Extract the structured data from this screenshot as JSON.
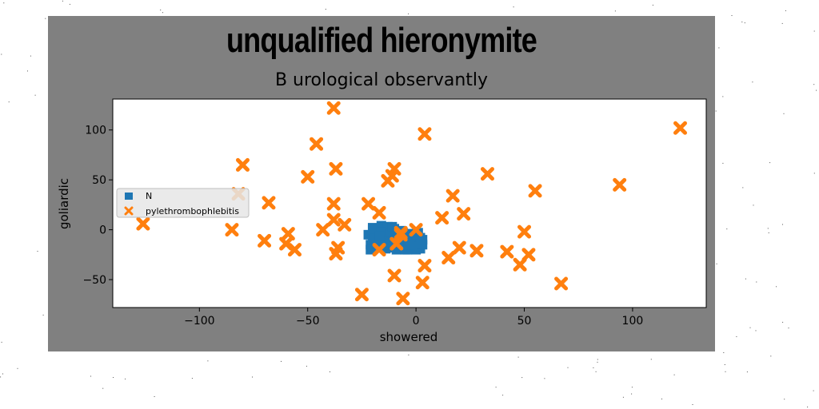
{
  "chart_data": {
    "type": "scatter",
    "title": "unqualified hieronymite",
    "subtitle": "B urological observantly",
    "xlabel": "showered",
    "ylabel": "goliardic",
    "xlim": [
      -140,
      134
    ],
    "ylim": [
      -78,
      131
    ],
    "xticks": [
      -100,
      -50,
      0,
      50,
      100
    ],
    "yticks": [
      -50,
      0,
      50,
      100
    ],
    "legend_position": "center-left",
    "background_color": "#808080",
    "plot_background": "#ffffff",
    "series": [
      {
        "name": "N",
        "marker": "square",
        "color": "#1f77b4",
        "x": [
          -22,
          -21,
          -20,
          -20,
          -19,
          -19,
          -18,
          -17,
          -17,
          -16,
          -16,
          -15,
          -15,
          -14,
          -14,
          -13,
          -13,
          -12,
          -12,
          -11,
          -11,
          -10,
          -10,
          -9,
          -9,
          -8,
          -8,
          -7,
          -7,
          -6,
          -6,
          -5,
          -5,
          -4,
          -4,
          -3,
          -3,
          -2,
          -2,
          -1,
          -1,
          0,
          0,
          1,
          1,
          2,
          2,
          3,
          3,
          -21,
          -18,
          -15,
          -12,
          -9,
          -6,
          -3,
          0,
          -20,
          -16,
          -13,
          -10,
          -7,
          -4,
          -1,
          2,
          -19,
          -14,
          -11,
          -8,
          -5,
          -2,
          1,
          -17,
          -12,
          -6,
          -3,
          0
        ],
        "y": [
          -5,
          -15,
          2,
          -10,
          -3,
          -18,
          -12,
          0,
          -8,
          4,
          -15,
          -5,
          -10,
          0,
          -19,
          3,
          -12,
          -6,
          -17,
          -2,
          -14,
          1,
          -9,
          -20,
          -4,
          -13,
          -7,
          -18,
          -11,
          -3,
          -15,
          -20,
          -8,
          -12,
          -16,
          -4,
          -19,
          -10,
          -14,
          -6,
          -18,
          -11,
          -20,
          -13,
          -16,
          -8,
          -19,
          -15,
          -10,
          -20,
          -14,
          -8,
          -4,
          -16,
          -6,
          -12,
          -19,
          0,
          -2,
          -11,
          -18,
          -1,
          -20,
          -8,
          -14,
          -9,
          -16,
          3,
          -12,
          -5,
          -17,
          -3,
          -6,
          -13,
          -9,
          -15,
          -5
        ]
      },
      {
        "name": "pylethrombophlebitis",
        "marker": "x",
        "color": "#ff7f0e",
        "x": [
          -38,
          4,
          -46,
          -80,
          -37,
          -10,
          -50,
          -13,
          33,
          -82,
          -68,
          -38,
          -22,
          -17,
          55,
          -11,
          17,
          -38,
          -43,
          -33,
          -7,
          12,
          22,
          -85,
          -126,
          -70,
          -59,
          -60,
          -56,
          -36,
          -37,
          -17,
          -9,
          0,
          -7,
          4,
          15,
          20,
          28,
          42,
          48,
          50,
          52,
          3,
          -10,
          -25,
          -6,
          67,
          94,
          122
        ],
        "y": [
          122,
          96,
          86,
          65,
          61,
          61,
          53,
          49,
          56,
          36,
          27,
          26,
          26,
          17,
          39,
          54,
          34,
          10,
          0,
          5,
          -3,
          12,
          16,
          0,
          6,
          -11,
          -4,
          -14,
          -20,
          -18,
          -24,
          -20,
          -14,
          0,
          -5,
          -36,
          -28,
          -18,
          -21,
          -22,
          -35,
          -2,
          -25,
          -53,
          -46,
          -65,
          -69,
          -54,
          45,
          102
        ]
      }
    ]
  }
}
